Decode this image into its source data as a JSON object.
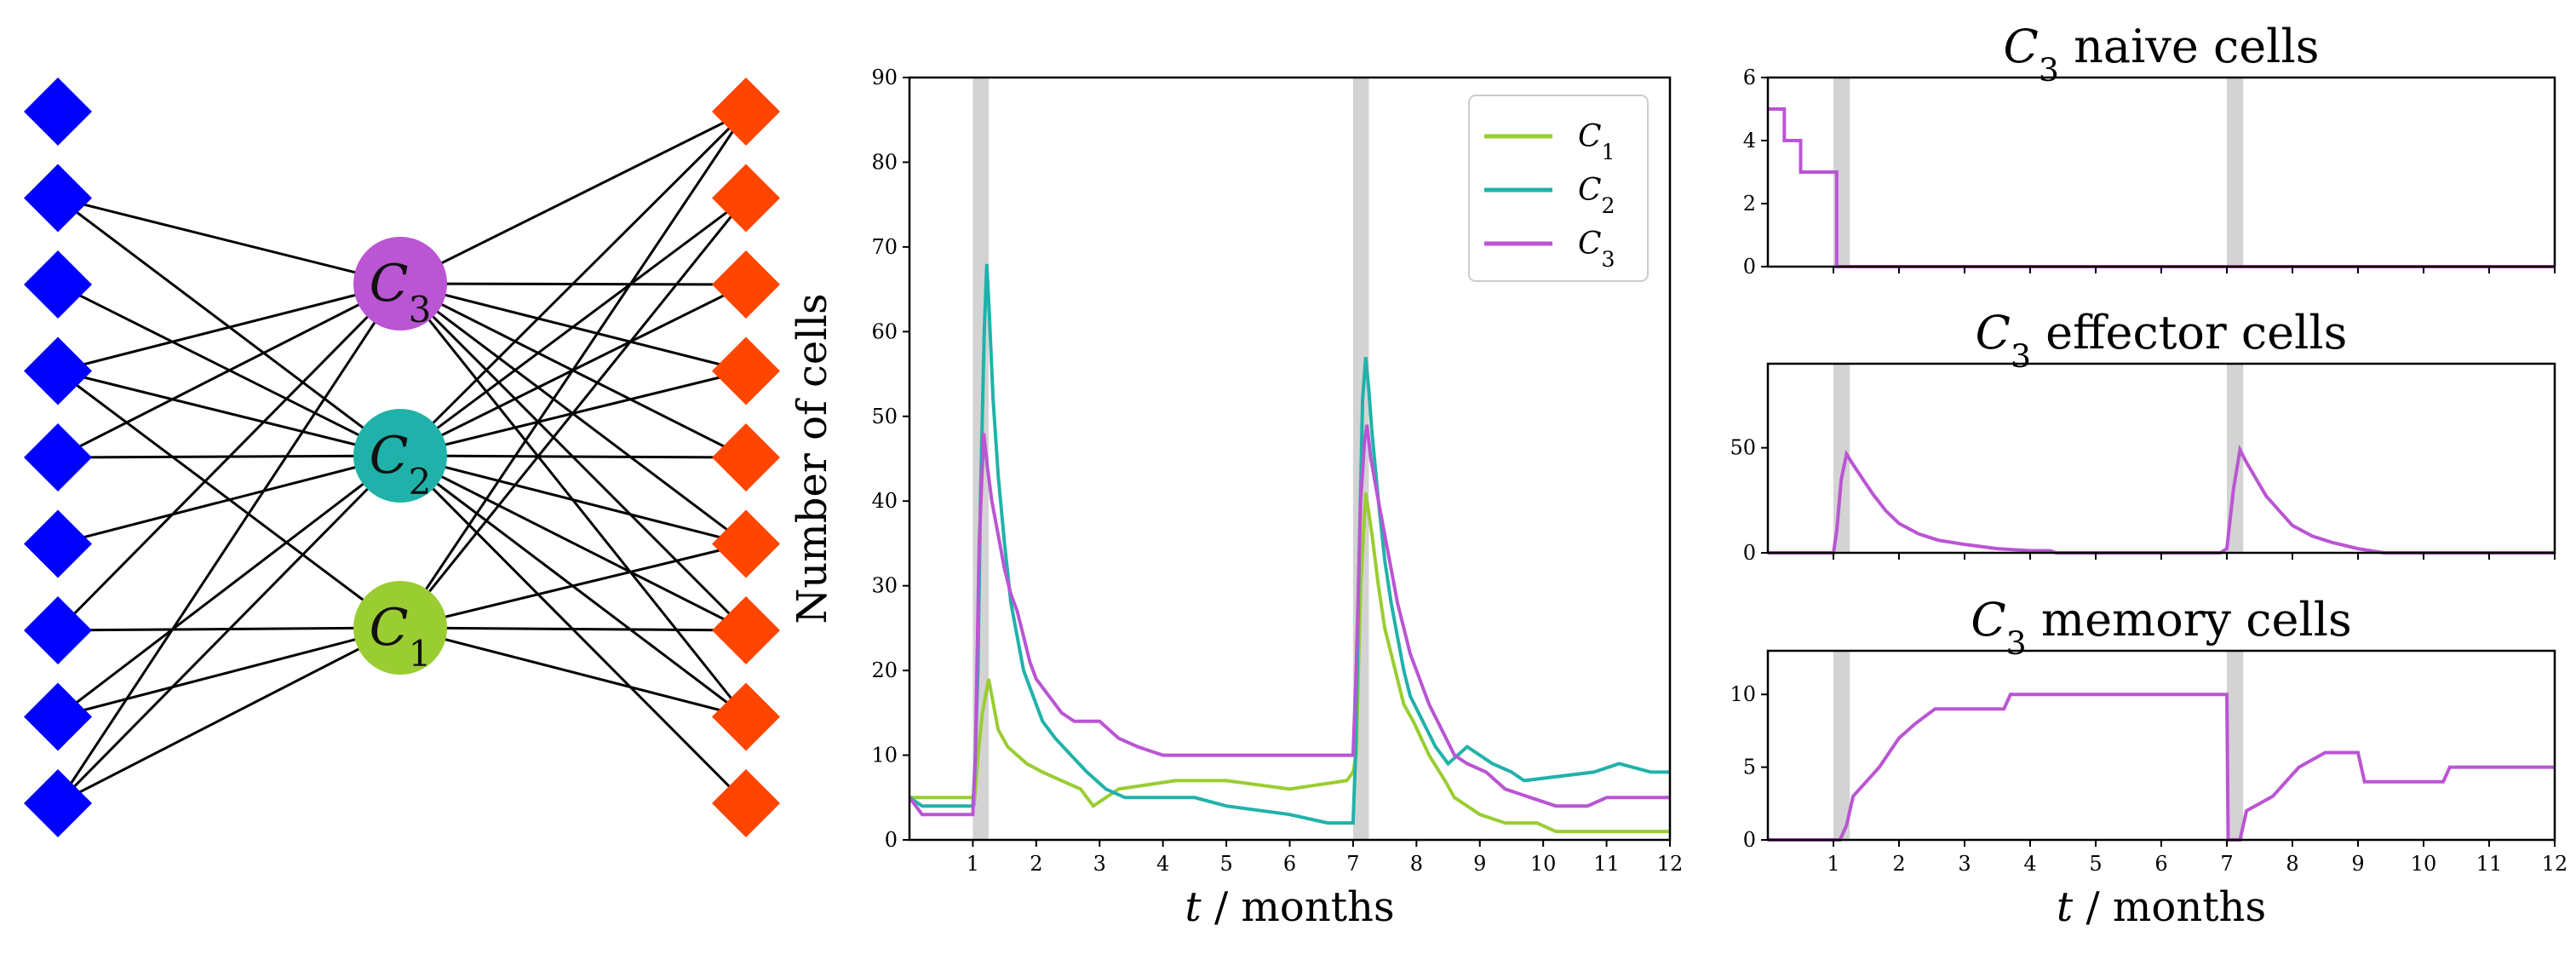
{
  "colors": {
    "C1": "#9acd32",
    "C2": "#20b2aa",
    "C3": "#ba55d3",
    "left_nodes": "#0000ff",
    "right_nodes": "#ff4500",
    "band": "#d3d3d3"
  },
  "network": {
    "center_nodes": [
      {
        "id": "C3",
        "base": "C",
        "sub": "3"
      },
      {
        "id": "C2",
        "base": "C",
        "sub": "2"
      },
      {
        "id": "C1",
        "base": "C",
        "sub": "1"
      }
    ],
    "left_count": 9,
    "right_count": 9,
    "edges_left": {
      "C3": [
        1,
        3,
        4,
        6,
        8
      ],
      "C2": [
        1,
        2,
        3,
        4,
        5,
        7,
        8
      ],
      "C1": [
        3,
        6,
        7,
        8
      ]
    },
    "edges_right": {
      "C3": [
        0,
        2,
        3,
        4,
        5,
        6,
        7
      ],
      "C2": [
        0,
        1,
        2,
        3,
        4,
        5,
        6,
        7,
        8
      ],
      "C1": [
        0,
        1,
        5,
        6,
        7
      ]
    }
  },
  "chart_data": [
    {
      "type": "line",
      "id": "main",
      "ylabel": "Number of cells",
      "xlabel_var": "t",
      "xlabel_unit": " / months",
      "xlim": [
        0,
        12
      ],
      "ylim": [
        0,
        90
      ],
      "xticks": [
        "1",
        "2",
        "3",
        "4",
        "5",
        "6",
        "7",
        "8",
        "9",
        "10",
        "11",
        "12"
      ],
      "yticks": [
        "0",
        "10",
        "20",
        "30",
        "40",
        "50",
        "60",
        "70",
        "80",
        "90"
      ],
      "shaded_bands": [
        [
          1.0,
          1.25
        ],
        [
          7.0,
          7.25
        ]
      ],
      "legend": [
        {
          "base": "C",
          "sub": "1",
          "key": "C1"
        },
        {
          "base": "C",
          "sub": "2",
          "key": "C2"
        },
        {
          "base": "C",
          "sub": "3",
          "key": "C3"
        }
      ],
      "series": [
        {
          "name": "C1",
          "points": [
            [
              0,
              5
            ],
            [
              1,
              5
            ],
            [
              1.02,
              4
            ],
            [
              1.08,
              10
            ],
            [
              1.15,
              15
            ],
            [
              1.25,
              19
            ],
            [
              1.3,
              17
            ],
            [
              1.4,
              13
            ],
            [
              1.55,
              11
            ],
            [
              1.7,
              10
            ],
            [
              1.85,
              9
            ],
            [
              2.1,
              8
            ],
            [
              2.4,
              7
            ],
            [
              2.7,
              6
            ],
            [
              2.8,
              5
            ],
            [
              2.9,
              4
            ],
            [
              3.1,
              5
            ],
            [
              3.3,
              6
            ],
            [
              4.2,
              7
            ],
            [
              5.0,
              7
            ],
            [
              6.0,
              6
            ],
            [
              6.9,
              7
            ],
            [
              7.0,
              8
            ],
            [
              7.05,
              10
            ],
            [
              7.12,
              30
            ],
            [
              7.2,
              41
            ],
            [
              7.3,
              36
            ],
            [
              7.4,
              30
            ],
            [
              7.5,
              25
            ],
            [
              7.6,
              22
            ],
            [
              7.7,
              19
            ],
            [
              7.8,
              16
            ],
            [
              7.95,
              14
            ],
            [
              8.2,
              10
            ],
            [
              8.45,
              7
            ],
            [
              8.6,
              5
            ],
            [
              8.8,
              4
            ],
            [
              9.0,
              3
            ],
            [
              9.4,
              2
            ],
            [
              9.9,
              2
            ],
            [
              10.2,
              1
            ],
            [
              12,
              1
            ]
          ]
        },
        {
          "name": "C2",
          "points": [
            [
              0,
              5
            ],
            [
              0.2,
              4
            ],
            [
              1,
              4
            ],
            [
              1.03,
              8
            ],
            [
              1.08,
              20
            ],
            [
              1.12,
              40
            ],
            [
              1.18,
              60
            ],
            [
              1.22,
              68
            ],
            [
              1.26,
              62
            ],
            [
              1.32,
              52
            ],
            [
              1.4,
              43
            ],
            [
              1.5,
              35
            ],
            [
              1.6,
              28
            ],
            [
              1.7,
              24
            ],
            [
              1.8,
              20
            ],
            [
              1.95,
              17
            ],
            [
              2.1,
              14
            ],
            [
              2.3,
              12
            ],
            [
              2.55,
              10
            ],
            [
              2.8,
              8
            ],
            [
              3.1,
              6
            ],
            [
              3.4,
              5
            ],
            [
              4.5,
              5
            ],
            [
              5.0,
              4
            ],
            [
              6.0,
              3
            ],
            [
              6.6,
              2
            ],
            [
              7.0,
              2
            ],
            [
              7.04,
              10
            ],
            [
              7.1,
              35
            ],
            [
              7.15,
              52
            ],
            [
              7.2,
              57
            ],
            [
              7.25,
              53
            ],
            [
              7.3,
              48
            ],
            [
              7.4,
              40
            ],
            [
              7.5,
              33
            ],
            [
              7.6,
              28
            ],
            [
              7.7,
              24
            ],
            [
              7.8,
              20
            ],
            [
              7.9,
              17
            ],
            [
              8.1,
              14
            ],
            [
              8.3,
              11
            ],
            [
              8.5,
              9
            ],
            [
              8.8,
              11
            ],
            [
              9.2,
              9
            ],
            [
              9.5,
              8
            ],
            [
              9.7,
              7
            ],
            [
              10.8,
              8
            ],
            [
              11.2,
              9
            ],
            [
              11.7,
              8
            ],
            [
              12,
              8
            ]
          ]
        },
        {
          "name": "C3",
          "points": [
            [
              0,
              5
            ],
            [
              0.2,
              3
            ],
            [
              1,
              3
            ],
            [
              1.04,
              10
            ],
            [
              1.1,
              35
            ],
            [
              1.17,
              48
            ],
            [
              1.23,
              44
            ],
            [
              1.3,
              40
            ],
            [
              1.4,
              36
            ],
            [
              1.5,
              32
            ],
            [
              1.6,
              29
            ],
            [
              1.7,
              27
            ],
            [
              1.8,
              24
            ],
            [
              1.9,
              21
            ],
            [
              2.0,
              19
            ],
            [
              2.2,
              17
            ],
            [
              2.4,
              15
            ],
            [
              2.6,
              14
            ],
            [
              3.0,
              14
            ],
            [
              3.3,
              12
            ],
            [
              3.6,
              11
            ],
            [
              4.0,
              10
            ],
            [
              5.5,
              10
            ],
            [
              6.9,
              10
            ],
            [
              7.0,
              10
            ],
            [
              7.05,
              20
            ],
            [
              7.12,
              40
            ],
            [
              7.18,
              47
            ],
            [
              7.22,
              49
            ],
            [
              7.28,
              45
            ],
            [
              7.4,
              40
            ],
            [
              7.5,
              36
            ],
            [
              7.6,
              32
            ],
            [
              7.7,
              28
            ],
            [
              7.8,
              25
            ],
            [
              7.9,
              22
            ],
            [
              8.05,
              19
            ],
            [
              8.2,
              16
            ],
            [
              8.4,
              13
            ],
            [
              8.6,
              10
            ],
            [
              8.8,
              9
            ],
            [
              9.1,
              8
            ],
            [
              9.4,
              6
            ],
            [
              9.8,
              5
            ],
            [
              10.2,
              4
            ],
            [
              10.7,
              4
            ],
            [
              11.0,
              5
            ],
            [
              12,
              5
            ]
          ]
        }
      ]
    },
    {
      "type": "line",
      "id": "naive",
      "title_base": "C",
      "title_sub": "3",
      "title_rest": " naive cells",
      "xlim": [
        0,
        12
      ],
      "ylim": [
        0,
        6
      ],
      "yticks": [
        "0",
        "2",
        "4",
        "6"
      ],
      "shaded_bands": [
        [
          1.0,
          1.25
        ],
        [
          7.0,
          7.25
        ]
      ],
      "series": [
        {
          "name": "C3",
          "points": [
            [
              0,
              5
            ],
            [
              0.25,
              5
            ],
            [
              0.25,
              4
            ],
            [
              0.5,
              4
            ],
            [
              0.5,
              3
            ],
            [
              1.05,
              3
            ],
            [
              1.05,
              0
            ],
            [
              12,
              0
            ]
          ]
        }
      ]
    },
    {
      "type": "line",
      "id": "effector",
      "title_base": "C",
      "title_sub": "3",
      "title_rest": " effector cells",
      "xlim": [
        0,
        12
      ],
      "ylim": [
        0,
        90
      ],
      "yticks": [
        "0",
        "50"
      ],
      "shaded_bands": [
        [
          1.0,
          1.25
        ],
        [
          7.0,
          7.25
        ]
      ],
      "series": [
        {
          "name": "C3",
          "points": [
            [
              0,
              0
            ],
            [
              1,
              0
            ],
            [
              1.05,
              10
            ],
            [
              1.12,
              35
            ],
            [
              1.2,
              47
            ],
            [
              1.3,
              42
            ],
            [
              1.45,
              35
            ],
            [
              1.6,
              28
            ],
            [
              1.8,
              20
            ],
            [
              2.0,
              14
            ],
            [
              2.3,
              9
            ],
            [
              2.6,
              6
            ],
            [
              3.0,
              4
            ],
            [
              3.5,
              2
            ],
            [
              4.0,
              1
            ],
            [
              4.3,
              1
            ],
            [
              4.4,
              0
            ],
            [
              6.9,
              0
            ],
            [
              7.0,
              2
            ],
            [
              7.1,
              30
            ],
            [
              7.2,
              49
            ],
            [
              7.3,
              43
            ],
            [
              7.45,
              35
            ],
            [
              7.6,
              27
            ],
            [
              7.8,
              20
            ],
            [
              8.0,
              13
            ],
            [
              8.3,
              8
            ],
            [
              8.6,
              5
            ],
            [
              9.0,
              2
            ],
            [
              9.4,
              0
            ],
            [
              12,
              0
            ]
          ]
        }
      ]
    },
    {
      "type": "line",
      "id": "memory",
      "title_base": "C",
      "title_sub": "3",
      "title_rest": " memory cells",
      "xlabel_var": "t",
      "xlabel_unit": " / months",
      "xlim": [
        0,
        12
      ],
      "ylim": [
        0,
        13
      ],
      "yticks": [
        "0",
        "5",
        "10"
      ],
      "xticks": [
        "1",
        "2",
        "3",
        "4",
        "5",
        "6",
        "7",
        "8",
        "9",
        "10",
        "11",
        "12"
      ],
      "shaded_bands": [
        [
          1.0,
          1.25
        ],
        [
          7.0,
          7.25
        ]
      ],
      "series": [
        {
          "name": "C3",
          "points": [
            [
              0,
              0
            ],
            [
              1.1,
              0
            ],
            [
              1.2,
              1
            ],
            [
              1.3,
              3
            ],
            [
              1.5,
              4
            ],
            [
              1.7,
              5
            ],
            [
              1.85,
              6
            ],
            [
              2.0,
              7
            ],
            [
              2.25,
              8
            ],
            [
              2.55,
              9
            ],
            [
              3.6,
              9
            ],
            [
              3.7,
              10
            ],
            [
              7.0,
              10
            ],
            [
              7.02,
              0
            ],
            [
              7.2,
              0
            ],
            [
              7.3,
              2
            ],
            [
              7.7,
              3
            ],
            [
              7.9,
              4
            ],
            [
              8.1,
              5
            ],
            [
              8.5,
              6
            ],
            [
              9.0,
              6
            ],
            [
              9.1,
              4
            ],
            [
              10.3,
              4
            ],
            [
              10.4,
              5
            ],
            [
              12,
              5
            ]
          ]
        }
      ]
    }
  ]
}
